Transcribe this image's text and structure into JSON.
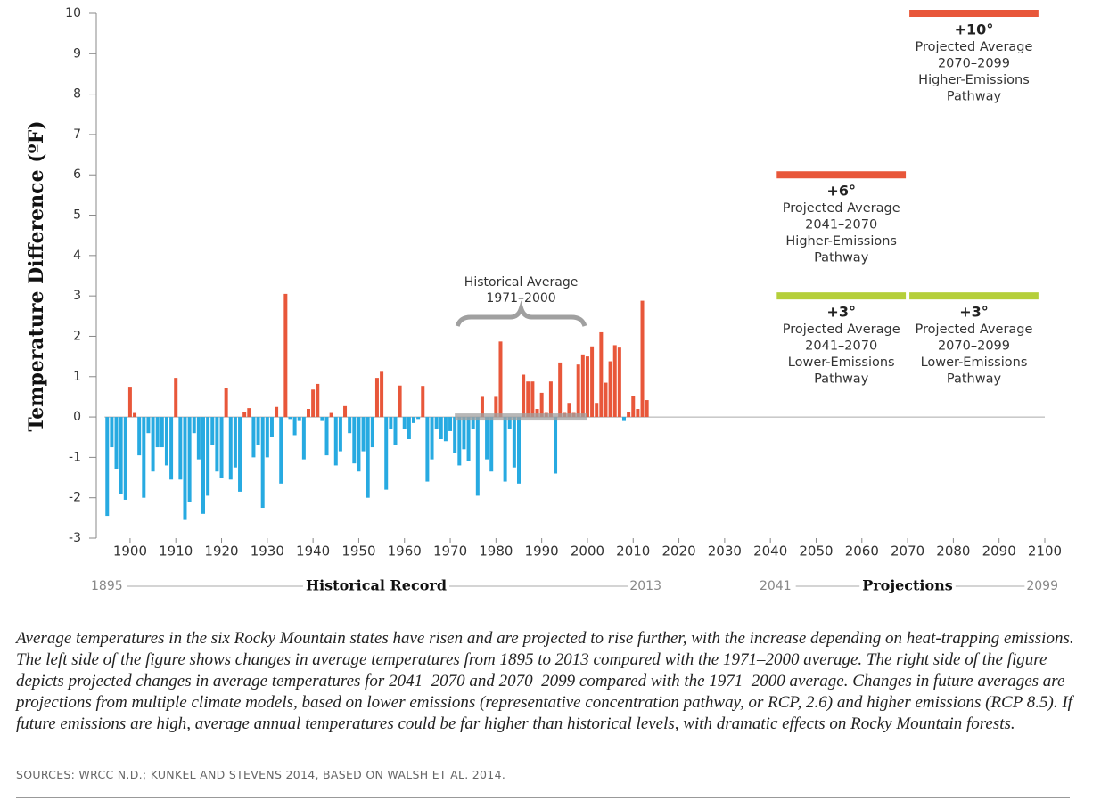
{
  "chart_data": {
    "type": "bar",
    "ylabel": "Temperature Difference (ºF)",
    "xlim": [
      1893,
      2100
    ],
    "ylim": [
      -3,
      10
    ],
    "yticks": [
      -3,
      -2,
      -1,
      0,
      1,
      2,
      3,
      4,
      5,
      6,
      7,
      8,
      9,
      10
    ],
    "xticks": [
      1900,
      1910,
      1920,
      1930,
      1940,
      1950,
      1960,
      1970,
      1980,
      1990,
      2000,
      2010,
      2020,
      2030,
      2040,
      2050,
      2060,
      2070,
      2080,
      2090,
      2100
    ],
    "positive_color": "#e8573a",
    "negative_color": "#27aae1",
    "x": [
      1895,
      1896,
      1897,
      1898,
      1899,
      1900,
      1901,
      1902,
      1903,
      1904,
      1905,
      1906,
      1907,
      1908,
      1909,
      1910,
      1911,
      1912,
      1913,
      1914,
      1915,
      1916,
      1917,
      1918,
      1919,
      1920,
      1921,
      1922,
      1923,
      1924,
      1925,
      1926,
      1927,
      1928,
      1929,
      1930,
      1931,
      1932,
      1933,
      1934,
      1935,
      1936,
      1937,
      1938,
      1939,
      1940,
      1941,
      1942,
      1943,
      1944,
      1945,
      1946,
      1947,
      1948,
      1949,
      1950,
      1951,
      1952,
      1953,
      1954,
      1955,
      1956,
      1957,
      1958,
      1959,
      1960,
      1961,
      1962,
      1963,
      1964,
      1965,
      1966,
      1967,
      1968,
      1969,
      1970,
      1971,
      1972,
      1973,
      1974,
      1975,
      1976,
      1977,
      1978,
      1979,
      1980,
      1981,
      1982,
      1983,
      1984,
      1985,
      1986,
      1987,
      1988,
      1989,
      1990,
      1991,
      1992,
      1993,
      1994,
      1995,
      1996,
      1997,
      1998,
      1999,
      2000,
      2001,
      2002,
      2003,
      2004,
      2005,
      2006,
      2007,
      2008,
      2009,
      2010,
      2011,
      2012,
      2013
    ],
    "values": [
      -2.45,
      -0.75,
      -1.3,
      -1.9,
      -2.05,
      0.75,
      0.1,
      -0.95,
      -2.0,
      -0.4,
      -1.35,
      -0.75,
      -0.75,
      -1.2,
      -1.55,
      0.97,
      -1.55,
      -2.55,
      -2.1,
      -0.4,
      -1.05,
      -2.4,
      -1.95,
      -0.7,
      -1.35,
      -1.5,
      0.72,
      -1.55,
      -1.25,
      -1.85,
      0.12,
      0.22,
      -1.0,
      -0.7,
      -2.25,
      -1.0,
      -0.5,
      0.25,
      -1.65,
      3.05,
      -0.05,
      -0.45,
      -0.1,
      -1.05,
      0.2,
      0.68,
      0.82,
      -0.1,
      -0.95,
      0.1,
      -1.2,
      -0.85,
      0.27,
      -0.4,
      -1.15,
      -1.35,
      -0.85,
      -2.0,
      -0.75,
      0.97,
      1.12,
      -1.8,
      -0.3,
      -0.7,
      0.78,
      -0.3,
      -0.55,
      -0.15,
      -0.05,
      0.77,
      -1.6,
      -1.05,
      -0.3,
      -0.55,
      -0.6,
      -0.35,
      -0.9,
      -1.2,
      -0.8,
      -1.1,
      -0.3,
      -1.95,
      0.5,
      -1.05,
      -1.35,
      0.5,
      1.87,
      -1.6,
      -0.3,
      -1.25,
      -1.65,
      1.05,
      0.88,
      0.88,
      0.2,
      0.6,
      0.1,
      0.88,
      -1.4,
      1.35,
      0.1,
      0.35,
      0.1,
      1.3,
      1.55,
      1.5,
      1.75,
      0.35,
      2.1,
      0.85,
      1.38,
      1.78,
      1.72,
      -0.1,
      0.12,
      0.52,
      0.2,
      2.88,
      0.42
    ],
    "historical_average": {
      "lines": [
        "Historical Average",
        "1971–2000"
      ],
      "start": 1971,
      "end": 2000,
      "color": "#a0a0a0"
    },
    "projections": [
      {
        "value": 10,
        "label": "+10°",
        "start": 2070,
        "end": 2099,
        "color": "#e8573a",
        "lines": [
          "Projected Average",
          "2070–2099",
          "Higher-Emissions",
          "Pathway"
        ]
      },
      {
        "value": 6,
        "label": "+6°",
        "start": 2041,
        "end": 2070,
        "color": "#e8573a",
        "lines": [
          "Projected Average",
          "2041–2070",
          "Higher-Emissions",
          "Pathway"
        ]
      },
      {
        "value": 3,
        "label": "+3°",
        "start": 2041,
        "end": 2070,
        "color": "#b5cf3a",
        "lines": [
          "Projected Average",
          "2041–2070",
          "Lower-Emissions",
          "Pathway"
        ]
      },
      {
        "value": 3,
        "label": "+3°",
        "start": 2070,
        "end": 2099,
        "color": "#b5cf3a",
        "lines": [
          "Projected Average",
          "2070–2099",
          "Lower-Emissions",
          "Pathway"
        ]
      }
    ],
    "periods": [
      {
        "start_label": "1895",
        "name": "Historical Record",
        "end_label": "2013"
      },
      {
        "start_label": "2041",
        "name": "Projections",
        "end_label": "2099"
      }
    ]
  },
  "caption": "Average temperatures in the six Rocky Mountain states have risen and are projected to rise further, with the increase depending on heat-trapping emissions. The left side of the figure shows changes in average temperatures from 1895 to 2013 compared with the 1971–2000 average. The right side of the figure depicts projected changes in average temperatures for 2041–2070 and 2070–2099 compared with the 1971–2000 average. Changes in future averages are projections from multiple climate models, based on lower emissions (representative concentration pathway, or RCP, 2.6) and higher emissions (RCP 8.5). If future emissions are high, average annual temperatures could be far higher than historical levels, with dramatic effects on Rocky Mountain forests.",
  "sources": "SOURCES: WRCC N.D.; KUNKEL AND STEVENS 2014, BASED ON WALSH ET AL. 2014."
}
